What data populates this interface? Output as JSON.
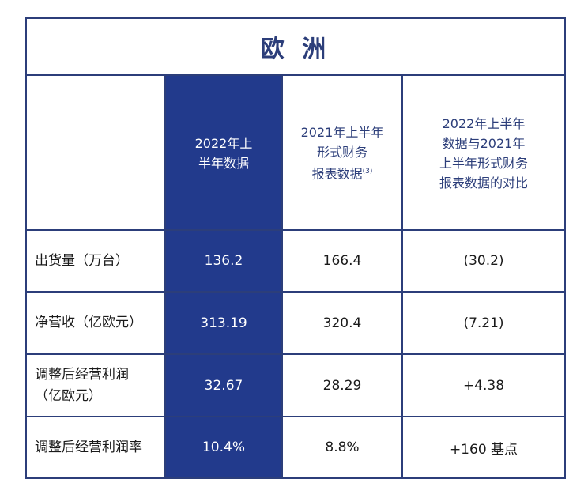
{
  "title": "欧 洲",
  "headers": {
    "col1": "2022年上\n半年数据",
    "col2": "2021年上半年\n形式财务\n报表数据",
    "col2_note": "(3)",
    "col3": "2022年上半年\n数据与2021年\n上半年形式财务\n报表数据的对比"
  },
  "rows": [
    {
      "label": "出货量（万台）",
      "v1": "136.2",
      "v2": "166.4",
      "v3": "(30.2)"
    },
    {
      "label": "净营收（亿欧元）",
      "v1": "313.19",
      "v2": "320.4",
      "v3": "(7.21)"
    },
    {
      "label": "调整后经营利润",
      "label2": "（亿欧元）",
      "v1": "32.67",
      "v2": "28.29",
      "v3": "+4.38"
    },
    {
      "label": "调整后经营利润率",
      "v1": "10.4%",
      "v2": "8.8%",
      "v3": "+160 基点"
    }
  ]
}
